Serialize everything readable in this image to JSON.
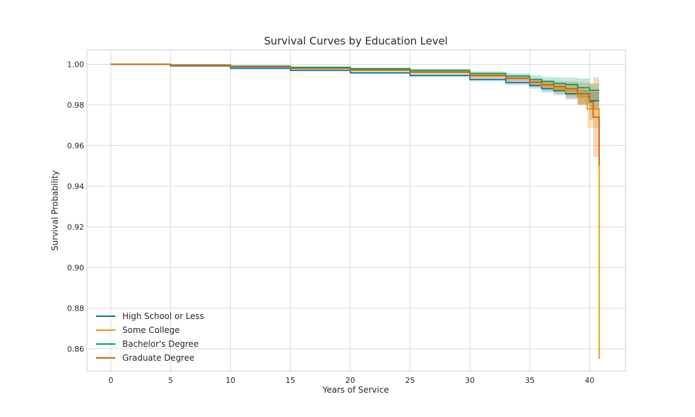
{
  "chart_data": {
    "type": "line",
    "title": "Survival Curves by Education Level",
    "xlabel": "Years of Service",
    "ylabel": "Survival Probability",
    "xlim": [
      -2,
      43
    ],
    "ylim": [
      0.849,
      1.007
    ],
    "xticks": [
      0,
      5,
      10,
      15,
      20,
      25,
      30,
      35,
      40
    ],
    "xtick_labels": [
      "0",
      "5",
      "10",
      "15",
      "20",
      "25",
      "30",
      "35",
      "40"
    ],
    "yticks": [
      0.86,
      0.88,
      0.9,
      0.92,
      0.94,
      0.96,
      0.98,
      1.0
    ],
    "ytick_labels": [
      "0.86",
      "0.88",
      "0.90",
      "0.92",
      "0.94",
      "0.96",
      "0.98",
      "1.00"
    ],
    "grid": true,
    "legend": "lower-left",
    "step": true,
    "series": [
      {
        "name": "High School or Less",
        "color": "#0072b2",
        "x": [
          0,
          5,
          10,
          15,
          20,
          25,
          30,
          33,
          35,
          36,
          37,
          38,
          39,
          40,
          40.8
        ],
        "y": [
          1.0,
          0.9992,
          0.998,
          0.997,
          0.9958,
          0.9945,
          0.9925,
          0.991,
          0.9895,
          0.988,
          0.987,
          0.9855,
          0.984,
          0.982,
          0.982
        ],
        "ci_lower": [
          1.0,
          0.999,
          0.9977,
          0.9966,
          0.9953,
          0.9939,
          0.9917,
          0.9899,
          0.988,
          0.9862,
          0.9848,
          0.9828,
          0.9805,
          0.9775,
          0.9775
        ],
        "ci_upper": [
          1.0,
          0.9994,
          0.9983,
          0.9974,
          0.9963,
          0.9951,
          0.9933,
          0.9921,
          0.991,
          0.9898,
          0.9892,
          0.9882,
          0.9875,
          0.9865,
          0.9865
        ]
      },
      {
        "name": "Some College",
        "color": "#e69f00",
        "x": [
          0,
          5,
          10,
          15,
          20,
          25,
          30,
          33,
          35,
          36,
          37,
          38,
          39,
          39.8,
          40.5,
          40.8
        ],
        "y": [
          1.0,
          0.9995,
          0.9988,
          0.998,
          0.997,
          0.996,
          0.9942,
          0.993,
          0.991,
          0.9895,
          0.988,
          0.9865,
          0.984,
          0.978,
          0.978,
          0.855
        ],
        "ci_lower": [
          1.0,
          0.9993,
          0.9985,
          0.9976,
          0.9964,
          0.9953,
          0.9933,
          0.9918,
          0.9893,
          0.9873,
          0.9855,
          0.9833,
          0.98,
          0.9685,
          0.9685,
          0.855
        ],
        "ci_upper": [
          1.0,
          0.9997,
          0.9991,
          0.9984,
          0.9976,
          0.9967,
          0.9951,
          0.9942,
          0.9927,
          0.9917,
          0.9905,
          0.9897,
          0.988,
          0.9875,
          0.9875,
          0.98
        ]
      },
      {
        "name": "Bachelor's Degree",
        "color": "#009e73",
        "x": [
          0,
          5,
          10,
          15,
          20,
          25,
          30,
          33,
          35,
          36,
          37,
          38,
          39,
          40,
          40.8
        ],
        "y": [
          1.0,
          0.9996,
          0.9991,
          0.9985,
          0.9978,
          0.997,
          0.9955,
          0.9942,
          0.9925,
          0.9915,
          0.9905,
          0.99,
          0.9885,
          0.9872,
          0.9872
        ],
        "ci_lower": [
          1.0,
          0.9994,
          0.9988,
          0.9981,
          0.9972,
          0.9962,
          0.9945,
          0.9928,
          0.9905,
          0.9892,
          0.9875,
          0.9865,
          0.984,
          0.982,
          0.982
        ],
        "ci_upper": [
          1.0,
          0.9998,
          0.9994,
          0.9989,
          0.9984,
          0.9978,
          0.9965,
          0.9956,
          0.9945,
          0.9938,
          0.9935,
          0.9935,
          0.993,
          0.9905,
          0.9905
        ]
      },
      {
        "name": "Graduate Degree",
        "color": "#d55e00",
        "x": [
          0,
          5,
          10,
          15,
          20,
          25,
          30,
          33,
          35,
          36,
          37,
          38,
          39,
          40,
          40.3,
          40.8
        ],
        "y": [
          1.0,
          0.9995,
          0.9988,
          0.998,
          0.9972,
          0.9962,
          0.9945,
          0.993,
          0.9912,
          0.99,
          0.989,
          0.988,
          0.9855,
          0.9815,
          0.974,
          0.95
        ],
        "ci_lower": [
          1.0,
          0.9993,
          0.9985,
          0.9976,
          0.9966,
          0.9954,
          0.9935,
          0.9917,
          0.9894,
          0.9878,
          0.9863,
          0.9845,
          0.98,
          0.9725,
          0.9545,
          0.9545
        ],
        "ci_upper": [
          1.0,
          0.9997,
          0.9991,
          0.9984,
          0.9978,
          0.997,
          0.9955,
          0.9943,
          0.993,
          0.9922,
          0.9917,
          0.9915,
          0.991,
          0.9905,
          0.9935,
          0.9935
        ]
      }
    ]
  }
}
